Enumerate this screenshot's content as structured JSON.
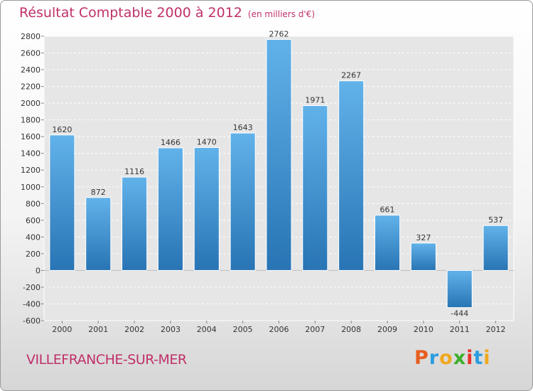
{
  "header": {
    "title": "Résultat Comptable 2000 à 2012",
    "subtitle": "(en milliers d'€)"
  },
  "footer": {
    "location": "VILLEFRANCHE-SUR-MER",
    "brand_letters": [
      "P",
      "r",
      "o",
      "x",
      "i",
      "t",
      "i"
    ],
    "brand_colors": [
      "#e85d1e",
      "#2a9de0",
      "#f0a81e",
      "#3cae2c",
      "#e6332a",
      "#2a9de0",
      "#f0a81e"
    ]
  },
  "chart_data": {
    "type": "bar",
    "title": "Résultat Comptable 2000 à 2012",
    "subtitle": "(en milliers d'€)",
    "xlabel": "",
    "ylabel": "",
    "categories": [
      "2000",
      "2001",
      "2002",
      "2003",
      "2004",
      "2005",
      "2006",
      "2007",
      "2008",
      "2009",
      "2010",
      "2011",
      "2012"
    ],
    "values": [
      1620,
      872,
      1116,
      1466,
      1470,
      1643,
      2762,
      1971,
      2267,
      661,
      327,
      -444,
      537
    ],
    "ylim": [
      -600,
      2800
    ],
    "yticks": [
      -600,
      -400,
      -200,
      0,
      200,
      400,
      600,
      800,
      1000,
      1200,
      1400,
      1600,
      1800,
      2000,
      2200,
      2400,
      2600,
      2800
    ],
    "grid": true,
    "bar_color": "#3a8fd0"
  }
}
